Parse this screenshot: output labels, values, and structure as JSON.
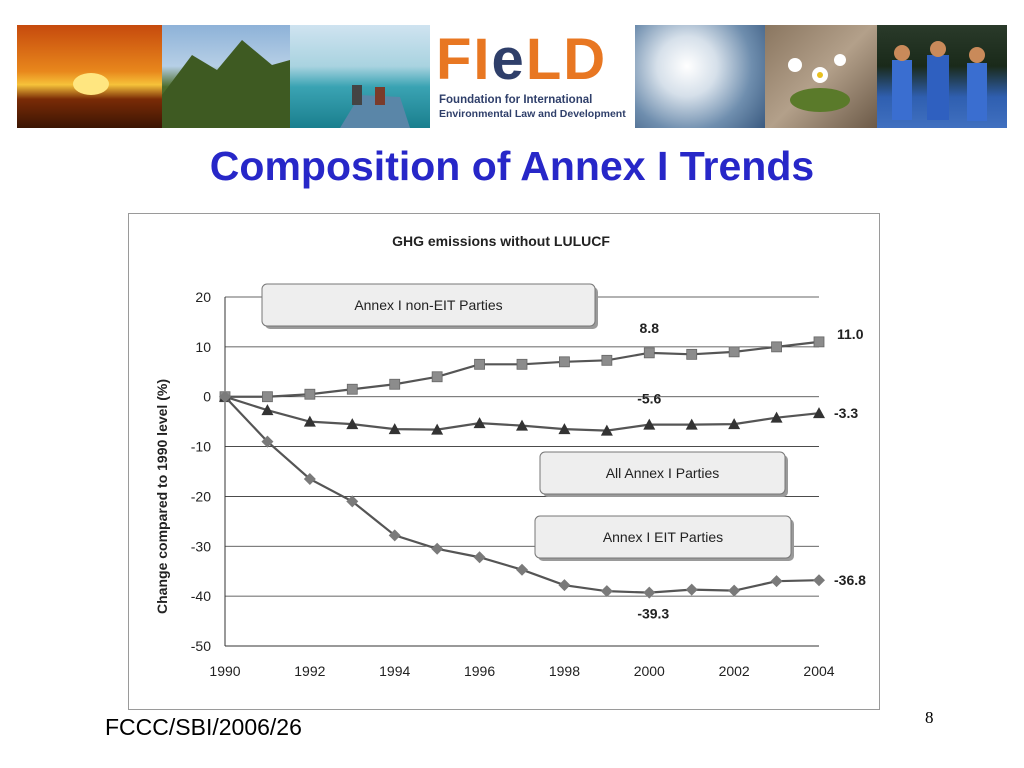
{
  "logo": {
    "word": "FIeLD",
    "line1": "Foundation for International",
    "line2": "Environmental Law and Development",
    "colors": {
      "orange": "#e87722",
      "navy": "#2f3f6a"
    }
  },
  "banner_images": [
    "sunset-photo",
    "mountain-photo",
    "boat-sea-photo",
    "logo",
    "clouds-photo",
    "flowers-photo",
    "dancers-photo"
  ],
  "slide": {
    "title": "Composition of Annex I Trends",
    "footer_ref": "FCCC/SBI/2006/26",
    "page_number": "8",
    "title_color": "#2727c8"
  },
  "chart_data": {
    "type": "line",
    "title": "GHG emissions without LULUCF",
    "xlabel": "",
    "ylabel": "Change compared to 1990 level (%)",
    "x": [
      1990,
      1991,
      1992,
      1993,
      1994,
      1995,
      1996,
      1997,
      1998,
      1999,
      2000,
      2001,
      2002,
      2003,
      2004
    ],
    "x_ticks": [
      "1990",
      "1992",
      "1994",
      "1996",
      "1998",
      "2000",
      "2002",
      "2004"
    ],
    "y_ticks": [
      "20",
      "10",
      "0",
      "-10",
      "-20",
      "-30",
      "-40",
      "-50"
    ],
    "ylim": [
      -50,
      20
    ],
    "grid": "horizontal",
    "series": [
      {
        "name": "Annex I non-EIT Parties",
        "marker": "square",
        "color": "#8c8c8c",
        "values": [
          0,
          0,
          0.5,
          1.5,
          2.5,
          4,
          6.5,
          6.5,
          7,
          7.3,
          8.8,
          8.5,
          9,
          10,
          11.0
        ]
      },
      {
        "name": "All Annex I Parties",
        "marker": "triangle",
        "color": "#333333",
        "values": [
          0,
          -2.7,
          -5,
          -5.5,
          -6.5,
          -6.6,
          -5.3,
          -5.8,
          -6.5,
          -6.8,
          -5.6,
          -5.6,
          -5.5,
          -4.2,
          -3.3
        ]
      },
      {
        "name": "Annex I EIT Parties",
        "marker": "diamond",
        "color": "#7a7a7a",
        "values": [
          0,
          -9,
          -16.5,
          -21,
          -27.8,
          -30.5,
          -32.2,
          -34.7,
          -37.8,
          -39,
          -39.3,
          -38.7,
          -38.9,
          -37,
          -36.8
        ]
      }
    ],
    "annotations": [
      "8.8",
      "11.0",
      "-5.6",
      "-3.3",
      "-39.3",
      "-36.8"
    ],
    "legend_boxes": [
      "Annex I non-EIT Parties",
      "All Annex I Parties",
      "Annex I EIT Parties"
    ]
  }
}
